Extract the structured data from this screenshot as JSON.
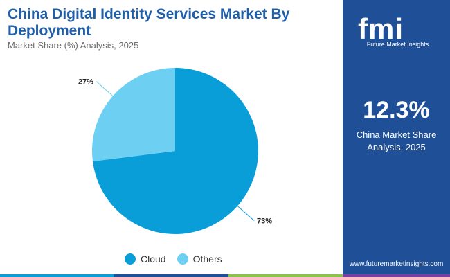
{
  "header": {
    "title": "China Digital Identity Services Market By Deployment",
    "subtitle": "Market Share (%) Analysis, 2025"
  },
  "chart_data": {
    "type": "pie",
    "title": "China Digital Identity Services Market By Deployment",
    "subtitle": "Market Share (%) Analysis, 2025",
    "slices": [
      {
        "label": "Cloud",
        "value": 73,
        "display": "73%",
        "color": "#0a9ed9"
      },
      {
        "label": "Others",
        "value": 27,
        "display": "27%",
        "color": "#6dcff2"
      }
    ],
    "legend_position": "bottom"
  },
  "sidebar": {
    "logo_text": "fmi",
    "logo_tagline": "Future Market Insights",
    "stat_value": "12.3%",
    "stat_label": "China Market Share Analysis, 2025",
    "url": "www.futuremarketinsights.com"
  },
  "colors": {
    "sidebar": "#1f4f97",
    "title": "#1f5ea8",
    "bar": [
      "#0a9ed9",
      "#1f4f97",
      "#8bc34a",
      "#7b3fa0"
    ]
  },
  "icons": [
    "logo-icon"
  ]
}
